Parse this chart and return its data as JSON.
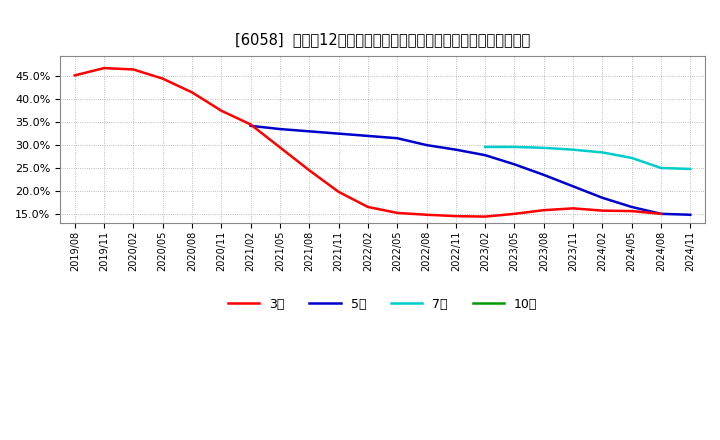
{
  "title": "[6058]  売上高12か月移動合計の対前年同期増減率の平均値の推移",
  "title_fontsize": 10.5,
  "ylim": [
    0.13,
    0.495
  ],
  "yticks": [
    0.15,
    0.2,
    0.25,
    0.3,
    0.35,
    0.4,
    0.45
  ],
  "background_color": "#ffffff",
  "plot_bg_color": "#ffffff",
  "grid_color": "#aaaaaa",
  "series": {
    "3year": {
      "label": "3年",
      "color": "#ff0000",
      "linewidth": 1.8
    },
    "5year": {
      "label": "5年",
      "color": "#0000cc",
      "linewidth": 1.8
    },
    "7year": {
      "label": "7年",
      "color": "#00cccc",
      "linewidth": 1.8
    },
    "10year": {
      "label": "10年",
      "color": "#009900",
      "linewidth": 1.8
    }
  },
  "x_labels": [
    "2019/08",
    "2019/11",
    "2020/02",
    "2020/05",
    "2020/08",
    "2020/11",
    "2021/02",
    "2021/05",
    "2021/08",
    "2021/11",
    "2022/02",
    "2022/05",
    "2022/08",
    "2022/11",
    "2023/02",
    "2023/05",
    "2023/08",
    "2023/11",
    "2024/02",
    "2024/05",
    "2024/08",
    "2024/11"
  ],
  "red_x": [
    0,
    1,
    2,
    3,
    4,
    5,
    6,
    7,
    8,
    9,
    10,
    11,
    12,
    13,
    14,
    15,
    16,
    17,
    18,
    19,
    20
  ],
  "red_y": [
    0.452,
    0.468,
    0.465,
    0.445,
    0.415,
    0.375,
    0.345,
    0.295,
    0.245,
    0.198,
    0.165,
    0.152,
    0.148,
    0.145,
    0.144,
    0.15,
    0.158,
    0.162,
    0.157,
    0.156,
    0.15
  ],
  "blue_x": [
    6,
    7,
    8,
    9,
    10,
    11,
    12,
    13,
    14,
    15,
    16,
    17,
    18,
    19,
    20,
    21
  ],
  "blue_y": [
    0.342,
    0.335,
    0.33,
    0.325,
    0.32,
    0.315,
    0.3,
    0.29,
    0.278,
    0.258,
    0.235,
    0.21,
    0.185,
    0.165,
    0.15,
    0.148
  ],
  "cyan_x": [
    14,
    15,
    16,
    17,
    18,
    19,
    20,
    21
  ],
  "cyan_y": [
    0.296,
    0.296,
    0.294,
    0.29,
    0.284,
    0.272,
    0.25,
    0.248
  ],
  "green_x": [],
  "green_y": []
}
